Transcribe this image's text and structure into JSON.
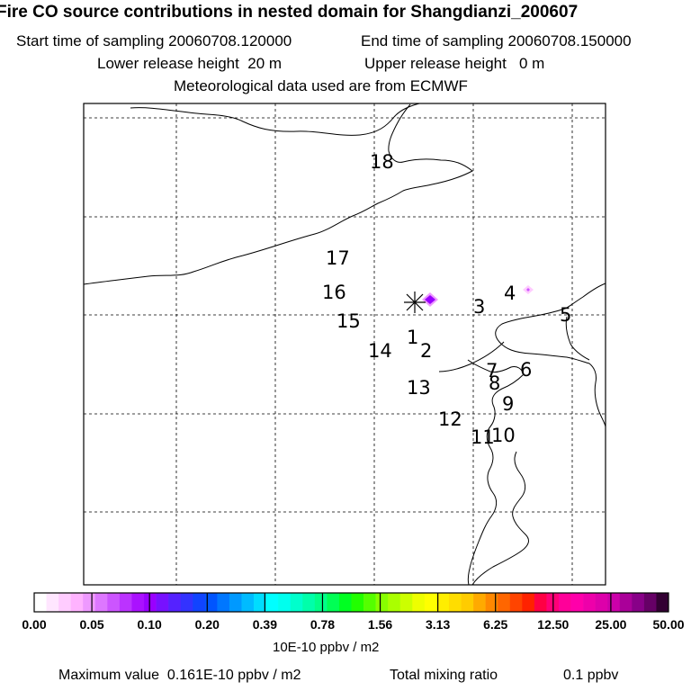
{
  "header": {
    "title": "Fire CO source contributions in nested domain for Shangdianzi_200607",
    "start_label": "Start time of sampling",
    "start_value": "20060708.120000",
    "end_label": "End time of sampling",
    "end_value": "20060708.150000",
    "lower_label": "Lower release height",
    "lower_value": "20 m",
    "upper_label": "Upper release height",
    "upper_value": "0 m",
    "met_line": "Meteorological data used are from ECMWF"
  },
  "map": {
    "station_marker": "asterisk-icon",
    "hour_labels": [
      "18",
      "17",
      "16",
      "15",
      "14",
      "13",
      "12",
      "11",
      "10",
      "9",
      "8",
      "7",
      "6",
      "5",
      "4",
      "3",
      "2",
      "1"
    ]
  },
  "colorbar": {
    "ticks": [
      "0.00",
      "0.05",
      "0.10",
      "0.20",
      "0.39",
      "0.78",
      "1.56",
      "3.13",
      "6.25",
      "12.50",
      "25.00",
      "50.00"
    ],
    "colors": [
      "#ffffff",
      "#ffe6ff",
      "#ffccff",
      "#ffb3ff",
      "#ee99ff",
      "#dd77ff",
      "#cc55ff",
      "#bb33ff",
      "#aa11ff",
      "#9900ff",
      "#7711ff",
      "#5522ff",
      "#3333ff",
      "#1144ff",
      "#0055ff",
      "#0077ff",
      "#0099ff",
      "#00bbff",
      "#00ddff",
      "#00ffff",
      "#00ffee",
      "#00ffcc",
      "#00ffaa",
      "#00ff88",
      "#00ff55",
      "#00ff22",
      "#22ff00",
      "#55ff00",
      "#88ff00",
      "#aaff00",
      "#ccff00",
      "#eeff00",
      "#ffff00",
      "#ffee00",
      "#ffdd00",
      "#ffcc00",
      "#ffaa00",
      "#ff8800",
      "#ff6600",
      "#ff4400",
      "#ff2200",
      "#ff0044",
      "#ff0077",
      "#ff0099",
      "#ff00aa",
      "#ee00aa",
      "#dd00aa",
      "#cc00aa",
      "#aa0099",
      "#880088",
      "#660066",
      "#330033"
    ],
    "units": "10E-10 ppbv / m2"
  },
  "footer": {
    "max_label": "Maximum value",
    "max_value": "0.161E-10 ppbv / m2",
    "total_label": "Total mixing ratio",
    "total_value": "0.1 ppbv"
  },
  "colors": {
    "frame": "#000000",
    "grid": "#000000",
    "plume_core": "#9900ff",
    "plume_edge": "#ee99ff"
  }
}
